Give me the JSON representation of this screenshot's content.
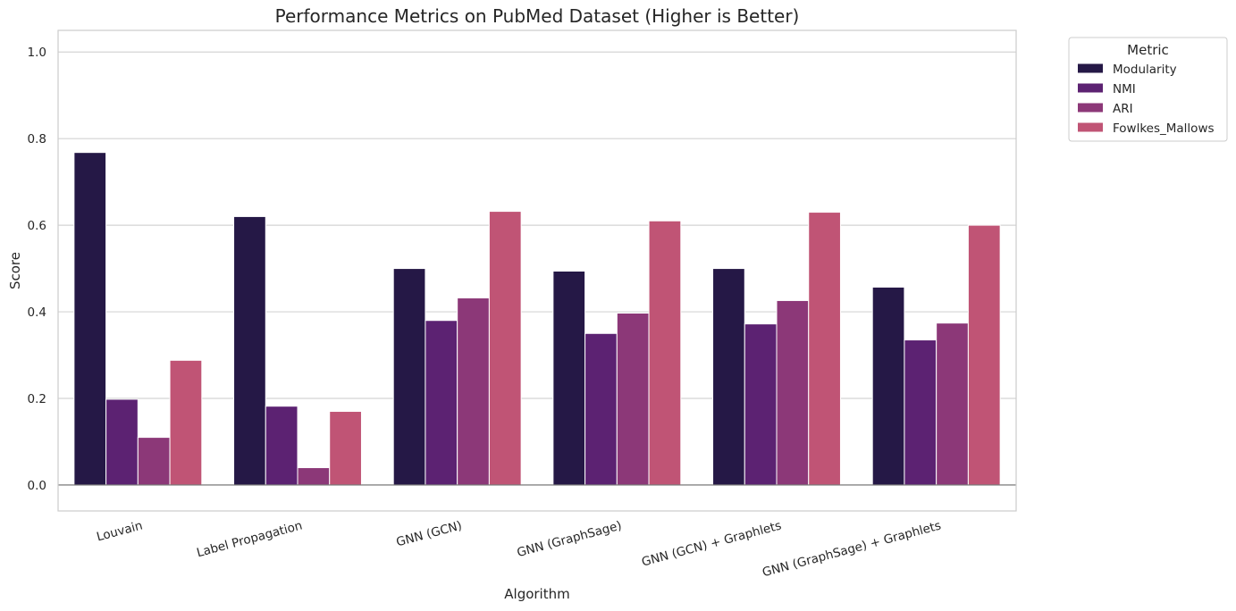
{
  "chart_data": {
    "type": "bar",
    "title": "Performance Metrics on PubMed Dataset (Higher is Better)",
    "xlabel": "Algorithm",
    "ylabel": "Score",
    "ylim": [
      -0.06,
      1.05
    ],
    "yticks": [
      "0.0",
      "0.2",
      "0.4",
      "0.6",
      "0.8",
      "1.0"
    ],
    "categories": [
      "Louvain",
      "Label Propagation",
      "GNN (GCN)",
      "GNN (GraphSage)",
      "GNN (GCN) + Graphlets",
      "GNN (GraphSage) + Graphlets"
    ],
    "series": [
      {
        "name": "Modularity",
        "color": "#251846",
        "values": [
          0.768,
          0.62,
          0.5,
          0.494,
          0.5,
          0.457
        ]
      },
      {
        "name": "NMI",
        "color": "#5c2272",
        "values": [
          0.198,
          0.182,
          0.38,
          0.35,
          0.372,
          0.335
        ]
      },
      {
        "name": "ARI",
        "color": "#8c3878",
        "values": [
          0.11,
          0.04,
          0.432,
          0.397,
          0.426,
          0.374
        ]
      },
      {
        "name": "Fowlkes_Mallows",
        "color": "#c05475",
        "values": [
          0.288,
          0.17,
          0.632,
          0.61,
          0.63,
          0.6
        ]
      }
    ],
    "legend": {
      "title": "Metric",
      "placement": "outside-top-right"
    },
    "grid": "y"
  }
}
